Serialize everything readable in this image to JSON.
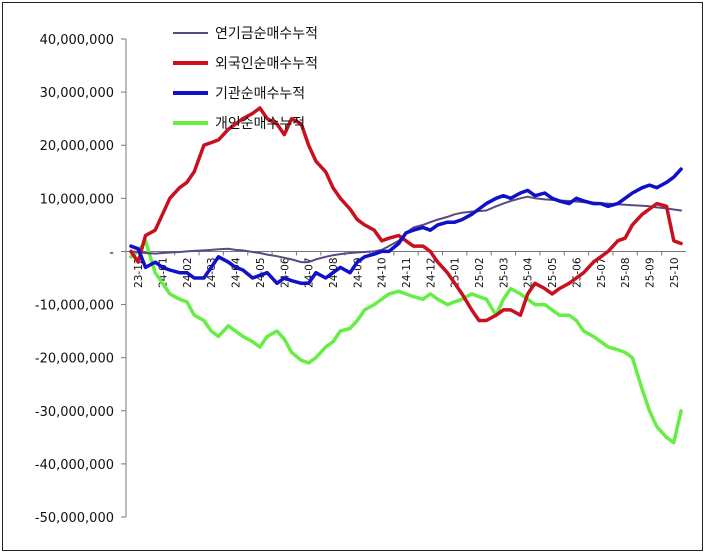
{
  "chart_data": {
    "type": "line",
    "title": "",
    "xlabel": "",
    "ylabel": "",
    "ylim": [
      -50000000,
      40000000
    ],
    "y_ticks": [
      {
        "value": 40000000,
        "label": "40,000,000"
      },
      {
        "value": 30000000,
        "label": "30,000,000"
      },
      {
        "value": 20000000,
        "label": "20,000,000"
      },
      {
        "value": 10000000,
        "label": "10,000,000"
      },
      {
        "value": 0,
        "label": "-"
      },
      {
        "value": -10000000,
        "label": "-10,000,000"
      },
      {
        "value": -20000000,
        "label": "-20,000,000"
      },
      {
        "value": -30000000,
        "label": "-30,000,000"
      },
      {
        "value": -40000000,
        "label": "-40,000,000"
      },
      {
        "value": -50000000,
        "label": "-50,000,000"
      }
    ],
    "categories": [
      "23-12",
      "24-01",
      "24-02",
      "24-03",
      "24-04",
      "24-05",
      "24-06",
      "24-07",
      "24-08",
      "24-09",
      "24-10",
      "24-11",
      "24-12",
      "25-01",
      "25-02",
      "25-03",
      "25-04",
      "25-05",
      "25-06",
      "25-07",
      "25-08",
      "25-09",
      "25-10"
    ],
    "x": [
      0,
      0.3,
      0.6,
      1,
      1.3,
      1.6,
      2,
      2.3,
      2.6,
      3,
      3.3,
      3.6,
      4,
      4.3,
      4.6,
      5,
      5.3,
      5.6,
      6,
      6.3,
      6.6,
      7,
      7.3,
      7.6,
      8,
      8.3,
      8.6,
      9,
      9.3,
      9.6,
      10,
      10.3,
      10.6,
      11,
      11.3,
      11.6,
      12,
      12.3,
      12.6,
      13,
      13.3,
      13.6,
      14,
      14.3,
      14.6,
      15,
      15.3,
      15.6,
      16,
      16.3,
      16.6,
      17,
      17.3,
      17.6,
      18,
      18.3,
      18.6,
      19,
      19.3,
      19.6,
      20,
      20.3,
      20.6,
      21,
      21.3,
      21.6,
      22,
      22.3,
      22.6
    ],
    "legend_position": "top-left",
    "series": [
      {
        "name": "연기금순매수누적",
        "color": "#5a4a80",
        "values": [
          0,
          -100000,
          -300000,
          -400000,
          -300000,
          -200000,
          -100000,
          0,
          100000,
          200000,
          300000,
          400000,
          500000,
          300000,
          200000,
          -100000,
          -300000,
          -600000,
          -900000,
          -1200000,
          -1500000,
          -2000000,
          -2000000,
          -1500000,
          -1000000,
          -700000,
          -500000,
          -300000,
          -200000,
          -100000,
          0,
          300000,
          1000000,
          2000000,
          3500000,
          4500000,
          5000000,
          5500000,
          6000000,
          6500000,
          7000000,
          7300000,
          7500000,
          7600000,
          7700000,
          8500000,
          9000000,
          9500000,
          10000000,
          10300000,
          10000000,
          9800000,
          9700000,
          9600000,
          9500000,
          9400000,
          9300000,
          9200000,
          9100000,
          9000000,
          8900000,
          8800000,
          8700000,
          8600000,
          8500000,
          8300000,
          8100000,
          7900000,
          7700000
        ]
      },
      {
        "name": "외국인순매수누적",
        "color": "#c8101e",
        "values": [
          0,
          -2000000,
          3000000,
          4000000,
          7000000,
          10000000,
          12000000,
          13000000,
          15000000,
          20000000,
          20500000,
          21000000,
          23000000,
          24000000,
          25000000,
          26000000,
          27000000,
          25000000,
          24000000,
          22000000,
          25000000,
          24000000,
          20000000,
          17000000,
          15000000,
          12000000,
          10000000,
          8000000,
          6000000,
          5000000,
          4000000,
          2000000,
          2500000,
          3000000,
          2000000,
          1000000,
          1000000,
          0,
          -2000000,
          -4000000,
          -6000000,
          -8000000,
          -11000000,
          -13000000,
          -13000000,
          -12000000,
          -11000000,
          -11000000,
          -12000000,
          -8000000,
          -6000000,
          -7000000,
          -8000000,
          -7000000,
          -6000000,
          -5000000,
          -4000000,
          -2000000,
          -1000000,
          0,
          2000000,
          2500000,
          5000000,
          7000000,
          8000000,
          9000000,
          8500000,
          2000000,
          1500000
        ]
      },
      {
        "name": "기관순매수누적",
        "color": "#1010c8",
        "values": [
          1000000,
          500000,
          -3000000,
          -2000000,
          -3000000,
          -3500000,
          -4000000,
          -4000000,
          -5000000,
          -5000000,
          -3000000,
          -1000000,
          -2000000,
          -3000000,
          -3500000,
          -5000000,
          -4500000,
          -4000000,
          -6000000,
          -5000000,
          -5500000,
          -6000000,
          -6000000,
          -4000000,
          -5000000,
          -4000000,
          -3000000,
          -4000000,
          -2000000,
          -1000000,
          -500000,
          0,
          0,
          1500000,
          3500000,
          4000000,
          4500000,
          4000000,
          5000000,
          5500000,
          5500000,
          6000000,
          7000000,
          8000000,
          9000000,
          10000000,
          10500000,
          10000000,
          11000000,
          11500000,
          10500000,
          11000000,
          10000000,
          9500000,
          9000000,
          10000000,
          9500000,
          9000000,
          9000000,
          8500000,
          9000000,
          10000000,
          11000000,
          12000000,
          12500000,
          12000000,
          13000000,
          14000000,
          15500000
        ]
      },
      {
        "name": "개인순매수누적",
        "color": "#66ee44",
        "values": [
          -1000000,
          0,
          2000000,
          -4000000,
          -6000000,
          -8000000,
          -9000000,
          -9500000,
          -12000000,
          -13000000,
          -15000000,
          -16000000,
          -14000000,
          -15000000,
          -16000000,
          -17000000,
          -18000000,
          -16000000,
          -15000000,
          -16500000,
          -19000000,
          -20500000,
          -21000000,
          -20000000,
          -18000000,
          -17000000,
          -15000000,
          -14500000,
          -13000000,
          -11000000,
          -10000000,
          -9000000,
          -8000000,
          -7500000,
          -8000000,
          -8500000,
          -9000000,
          -8000000,
          -9000000,
          -10000000,
          -9500000,
          -9000000,
          -8000000,
          -8500000,
          -9000000,
          -12000000,
          -9000000,
          -7000000,
          -8000000,
          -9000000,
          -10000000,
          -10000000,
          -11000000,
          -12000000,
          -12000000,
          -13000000,
          -15000000,
          -16000000,
          -17000000,
          -18000000,
          -18500000,
          -19000000,
          -20000000,
          -26000000,
          -30000000,
          -33000000,
          -35000000,
          -36000000,
          -30000000
        ]
      }
    ]
  }
}
